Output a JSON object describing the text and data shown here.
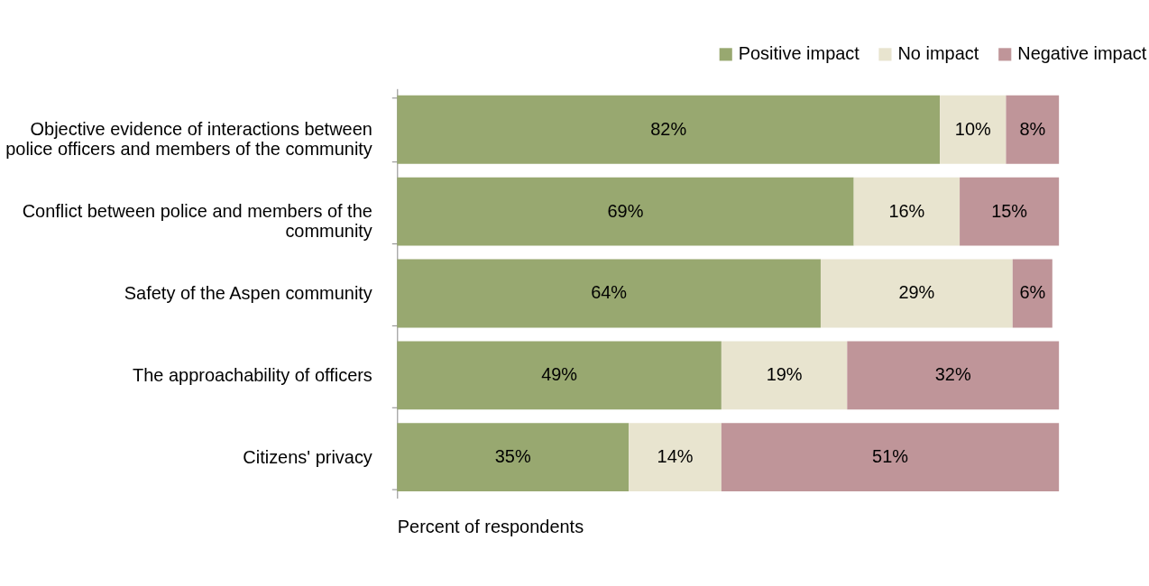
{
  "chart_data": {
    "type": "bar",
    "orientation": "horizontal",
    "stacked": true,
    "xlabel": "Percent of respondents",
    "categories": [
      "Objective evidence of interactions between police officers and members of the community",
      "Conflict between police and members of the community",
      "Safety of the Aspen community",
      "The approachability of officers",
      "Citizens' privacy"
    ],
    "series": [
      {
        "name": "Positive impact",
        "color": "#98a870",
        "values": [
          82,
          69,
          64,
          49,
          35
        ],
        "value_labels": [
          "82%",
          "69%",
          "64%",
          "49%",
          "35%"
        ]
      },
      {
        "name": "No impact",
        "color": "#e8e4cf",
        "values": [
          10,
          16,
          29,
          19,
          14
        ],
        "value_labels": [
          "10%",
          "16%",
          "29%",
          "19%",
          "14%"
        ]
      },
      {
        "name": "Negative impact",
        "color": "#bf9599",
        "values": [
          8,
          15,
          6,
          32,
          51
        ],
        "value_labels": [
          "8%",
          "15%",
          "6%",
          "32%",
          "51%"
        ]
      }
    ],
    "tick_labels": "y",
    "legend": "top right",
    "grid": false
  }
}
